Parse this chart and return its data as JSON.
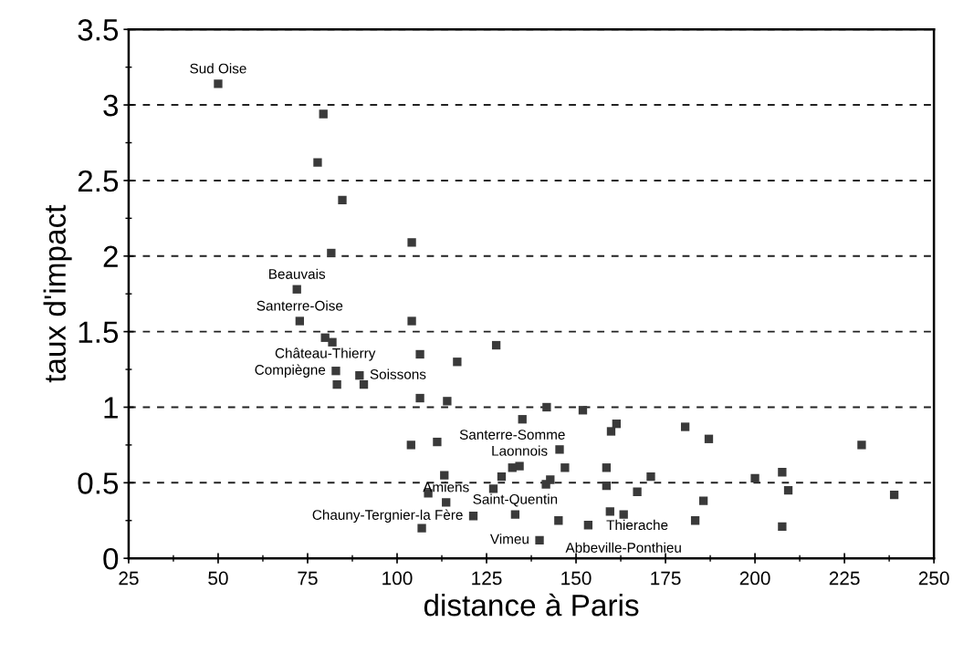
{
  "chart_data": {
    "type": "scatter",
    "xlabel": "distance à Paris",
    "ylabel": "taux d'impact",
    "xlim": [
      25,
      250
    ],
    "xticks": [
      25,
      50,
      75,
      100,
      125,
      150,
      175,
      200,
      225,
      250
    ],
    "ylim": [
      0,
      3.5
    ],
    "yticks": [
      0,
      {
        "value": 0.5,
        "label": "0.5"
      },
      1,
      {
        "value": 1.5,
        "label": "1.5"
      },
      2,
      {
        "value": 2.5,
        "label": "2.5"
      },
      3,
      {
        "value": 3.5,
        "label": "3.5"
      }
    ],
    "grid": "y",
    "marker": "square",
    "series": [
      {
        "color": "#3a3a3a",
        "x": [
          50,
          79.4,
          77.8,
          84.7,
          104.1,
          81.6,
          72,
          72.8,
          104.1,
          79.9,
          81.9,
          127.7,
          106.4,
          116.8,
          82.9,
          89.5,
          83.2,
          90.7,
          106.4,
          114,
          135,
          103.9,
          111.2,
          134.2,
          132.2,
          113.2,
          129.2,
          126.9,
          108.7,
          113.7,
          133,
          106.9,
          121.3,
          141.8,
          151.9,
          161.3,
          159.8,
          180.5,
          187.1,
          229.8,
          145.4,
          146.9,
          158.5,
          170.9,
          200,
          207.6,
          142.8,
          141.6,
          158.5,
          209.3,
          238.9,
          167.1,
          185.6,
          163.3,
          159.5,
          145.1,
          153.4,
          183.3,
          207.6,
          139.8
        ],
        "values": [
          3.14,
          2.94,
          2.62,
          2.37,
          2.09,
          2.02,
          1.78,
          1.57,
          1.57,
          1.46,
          1.43,
          1.41,
          1.35,
          1.3,
          1.24,
          1.21,
          1.15,
          1.15,
          1.06,
          1.04,
          0.92,
          0.75,
          0.77,
          0.61,
          0.6,
          0.55,
          0.54,
          0.46,
          0.43,
          0.37,
          0.29,
          0.2,
          0.28,
          1.0,
          0.98,
          0.89,
          0.84,
          0.87,
          0.79,
          0.75,
          0.72,
          0.6,
          0.6,
          0.54,
          0.53,
          0.57,
          0.52,
          0.49,
          0.48,
          0.45,
          0.42,
          0.44,
          0.38,
          0.29,
          0.31,
          0.25,
          0.22,
          0.25,
          0.21,
          0.12
        ]
      }
    ],
    "annotations": [
      {
        "text": "Sud Oise",
        "x": 50,
        "y": 3.14
      },
      {
        "text": "Beauvais",
        "x": 72,
        "y": 1.78
      },
      {
        "text": "Santerre-Oise",
        "x": 72.8,
        "y": 1.57
      },
      {
        "text": "Château-Thierry",
        "x": 79.9,
        "y": 1.46
      },
      {
        "text": "Compiègne",
        "x": 82.9,
        "y": 1.24
      },
      {
        "text": "Soissons",
        "x": 89.5,
        "y": 1.21
      },
      {
        "text": "Santerre-Somme",
        "x": 132.2,
        "y": 0.6
      },
      {
        "text": "Laonnois",
        "x": 134.2,
        "y": 0.61
      },
      {
        "text": "Saint-Quentin",
        "x": 133,
        "y": 0.29
      },
      {
        "text": "Thierache",
        "x": 167.1,
        "y": 0.44
      },
      {
        "text": "Amiens",
        "x": 113.7,
        "y": 0.37
      },
      {
        "text": "Chauny-Tergnier-la Fère",
        "x": 121.3,
        "y": 0.28
      },
      {
        "text": "Abbeville-Ponthieu",
        "x": 163.3,
        "y": 0.29
      },
      {
        "text": "Vimeu",
        "x": 139.8,
        "y": 0.12
      }
    ]
  }
}
